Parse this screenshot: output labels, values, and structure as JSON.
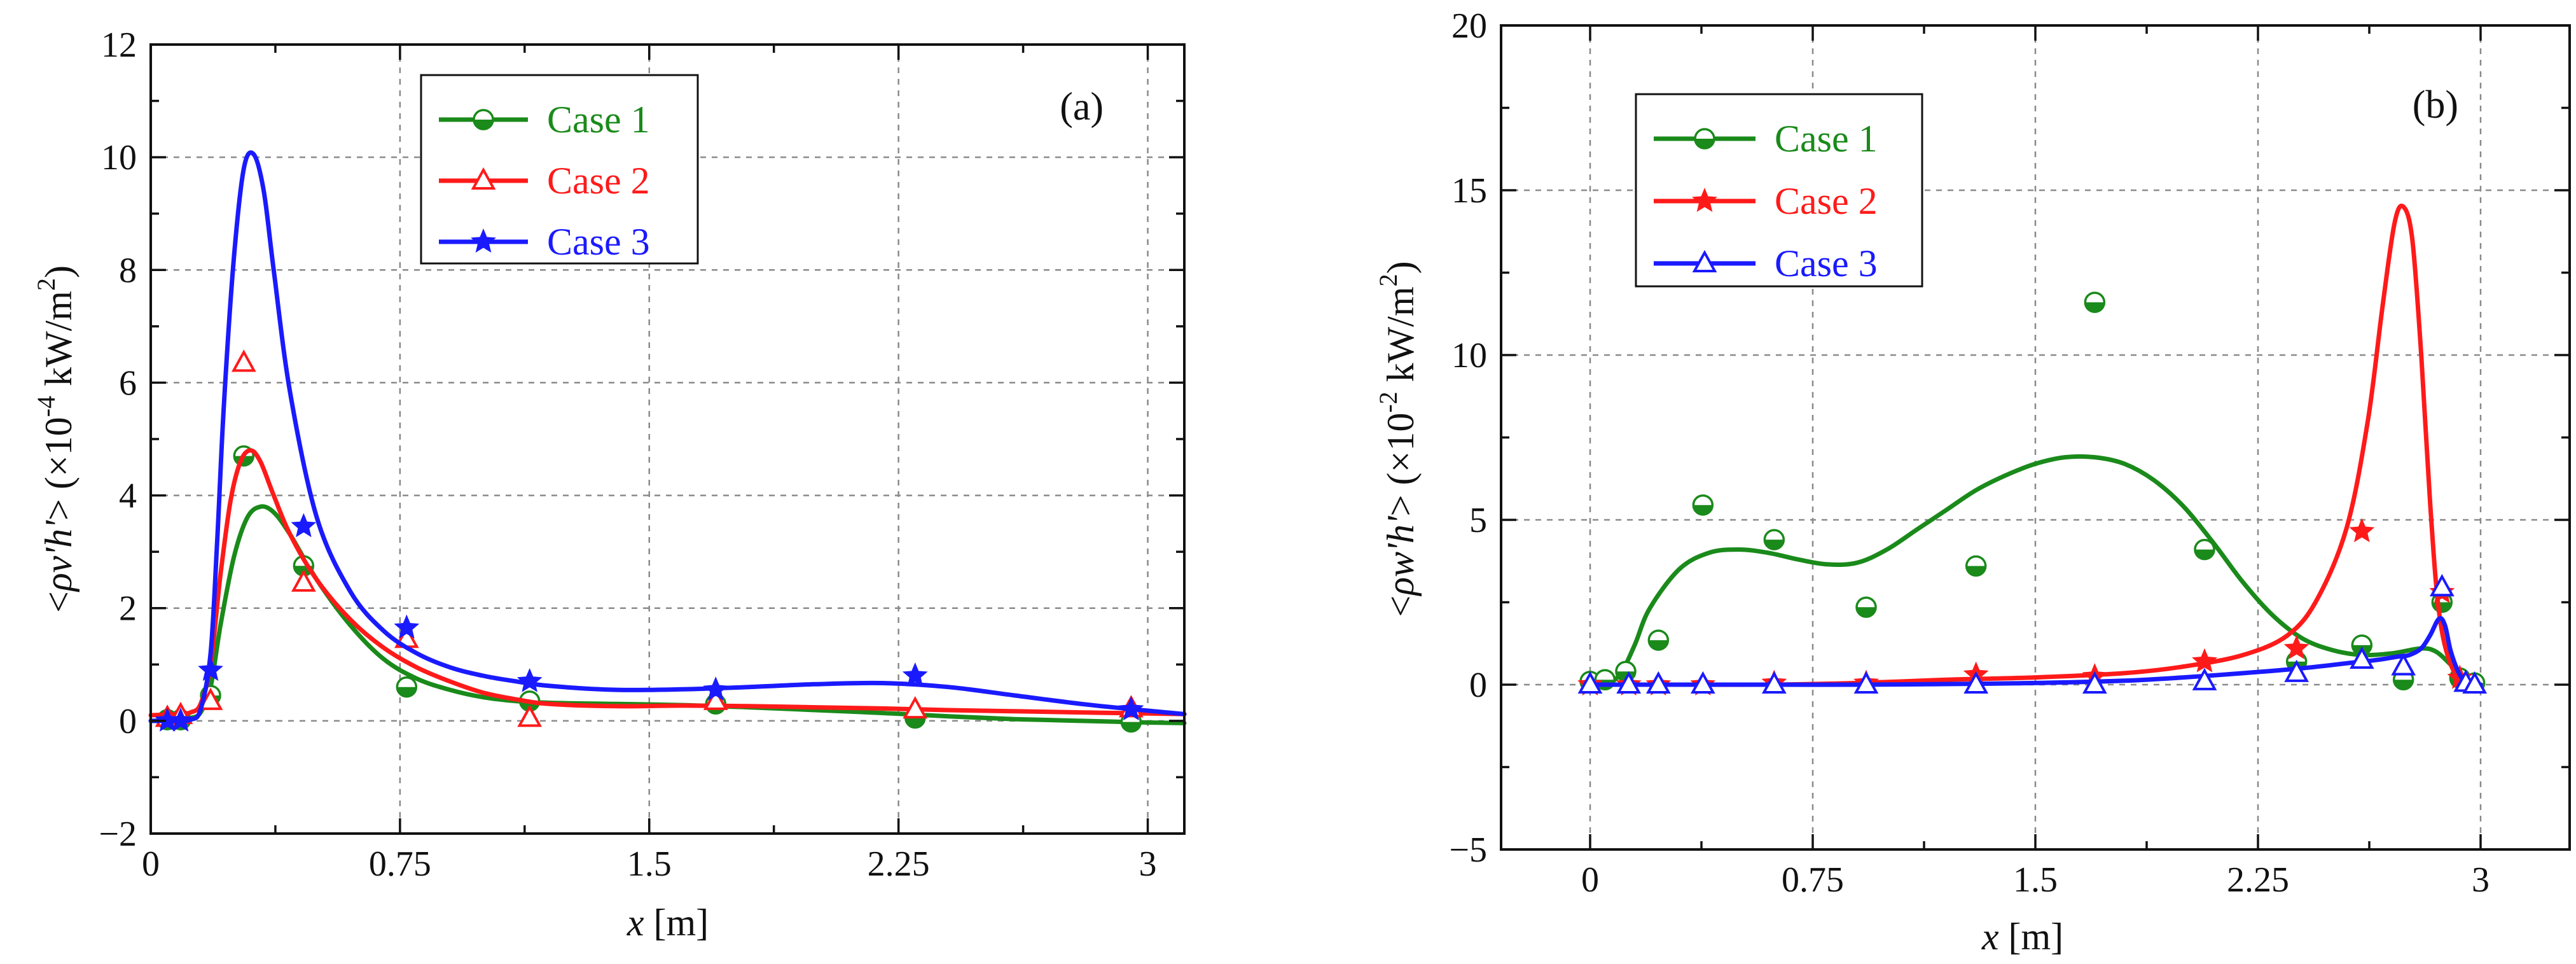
{
  "colors": {
    "case1": "#1a8a1a",
    "case2": "#ff1a1a",
    "case3": "#1a1aff",
    "axis": "#111111",
    "grid": "#8a8a8a"
  },
  "chart_data": [
    {
      "type": "line",
      "panel_label": "(a)",
      "xlabel_var": "x",
      "xlabel_unit": " [m]",
      "ylabel": {
        "p1": "<",
        "p2": "ρv'h'",
        "p3": "> (×10",
        "exp": "-4",
        "p4": " kW/m",
        "exp2": "2",
        "p5": ")"
      },
      "xlim": [
        0,
        3.11
      ],
      "ylim": [
        -2,
        12
      ],
      "xticks": [
        0,
        0.75,
        1.5,
        2.25,
        3
      ],
      "xtick_labels": [
        "0",
        "0.75",
        "1.5",
        "2.25",
        "3"
      ],
      "xticks_minor": [
        0.375,
        1.125,
        1.875,
        2.625
      ],
      "yticks": [
        -2,
        0,
        2,
        4,
        6,
        8,
        10,
        12
      ],
      "ytick_labels": [
        "−2",
        "0",
        "2",
        "4",
        "6",
        "8",
        "10",
        "12"
      ],
      "legend_position": "top-center",
      "series": [
        {
          "name": "Case 1",
          "color": "#1a8a1a",
          "marker": "circle",
          "curve_x": [
            0,
            0.08,
            0.12,
            0.15,
            0.18,
            0.21,
            0.25,
            0.29,
            0.33,
            0.37,
            0.42,
            0.5,
            0.6,
            0.7,
            0.8,
            0.9,
            1.0,
            1.1,
            1.2,
            1.4,
            1.6,
            1.8,
            2.0,
            2.2,
            2.4,
            2.6,
            2.8,
            3.0,
            3.11
          ],
          "curve_y": [
            0,
            0.02,
            0.05,
            0.15,
            0.6,
            1.7,
            2.9,
            3.6,
            3.8,
            3.7,
            3.3,
            2.5,
            1.7,
            1.1,
            0.75,
            0.55,
            0.42,
            0.35,
            0.32,
            0.3,
            0.28,
            0.24,
            0.19,
            0.14,
            0.08,
            0.03,
            0.0,
            -0.03,
            -0.04
          ],
          "marker_x": [
            0.05,
            0.09,
            0.18,
            0.28,
            0.46,
            0.77,
            1.14,
            1.7,
            2.3,
            2.95
          ],
          "marker_y": [
            0.02,
            0.02,
            0.45,
            4.7,
            2.75,
            0.6,
            0.35,
            0.3,
            0.05,
            -0.02
          ]
        },
        {
          "name": "Case 2",
          "color": "#ff1a1a",
          "marker": "triangle",
          "curve_x": [
            0,
            0.08,
            0.12,
            0.15,
            0.18,
            0.21,
            0.24,
            0.27,
            0.3,
            0.33,
            0.37,
            0.42,
            0.5,
            0.6,
            0.7,
            0.8,
            0.9,
            1.0,
            1.1,
            1.2,
            1.4,
            1.6,
            1.8,
            2.0,
            2.2,
            2.4,
            2.6,
            2.8,
            3.0,
            3.11
          ],
          "curve_y": [
            0.1,
            0.12,
            0.15,
            0.3,
            1.0,
            2.6,
            3.9,
            4.6,
            4.8,
            4.6,
            4.0,
            3.3,
            2.5,
            1.8,
            1.3,
            0.95,
            0.7,
            0.5,
            0.38,
            0.3,
            0.26,
            0.27,
            0.26,
            0.24,
            0.22,
            0.19,
            0.17,
            0.15,
            0.13,
            0.12
          ],
          "marker_x": [
            0.05,
            0.09,
            0.18,
            0.28,
            0.46,
            0.77,
            1.14,
            1.7,
            2.3,
            2.95
          ],
          "marker_y": [
            0.05,
            0.1,
            0.35,
            6.35,
            2.45,
            1.45,
            0.05,
            0.35,
            0.2,
            0.22
          ]
        },
        {
          "name": "Case 3",
          "color": "#1a1aff",
          "marker": "star",
          "curve_x": [
            0,
            0.08,
            0.12,
            0.15,
            0.18,
            0.2,
            0.22,
            0.25,
            0.28,
            0.31,
            0.34,
            0.37,
            0.42,
            0.5,
            0.6,
            0.7,
            0.8,
            0.9,
            1.0,
            1.1,
            1.2,
            1.4,
            1.6,
            1.8,
            2.0,
            2.2,
            2.4,
            2.6,
            2.8,
            3.0,
            3.11
          ],
          "curve_y": [
            0,
            0,
            0.02,
            0.2,
            1.2,
            3.2,
            5.6,
            8.2,
            9.8,
            10.05,
            9.4,
            8.0,
            5.8,
            3.6,
            2.3,
            1.6,
            1.2,
            0.95,
            0.8,
            0.7,
            0.62,
            0.55,
            0.56,
            0.6,
            0.65,
            0.67,
            0.6,
            0.45,
            0.3,
            0.18,
            0.12
          ],
          "marker_x": [
            0.05,
            0.09,
            0.18,
            0.46,
            0.77,
            1.14,
            1.7,
            2.3,
            2.95
          ],
          "marker_y": [
            0,
            0,
            0.9,
            3.45,
            1.65,
            0.7,
            0.55,
            0.8,
            0.2
          ]
        }
      ]
    },
    {
      "type": "line",
      "panel_label": "(b)",
      "xlabel_var": "x",
      "xlabel_unit": " [m]",
      "ylabel": {
        "p1": "<",
        "p2": "ρw'h'",
        "p3": "> (×10",
        "exp": "-2",
        "p4": " kW/m",
        "exp2": "2",
        "p5": ")"
      },
      "xlim": [
        -0.3,
        3.3
      ],
      "ylim": [
        -5,
        20
      ],
      "xticks": [
        0,
        0.75,
        1.5,
        2.25,
        3
      ],
      "xtick_labels": [
        "0",
        "0.75",
        "1.5",
        "2.25",
        "3"
      ],
      "xticks_minor": [
        0.375,
        1.125,
        1.875,
        2.625
      ],
      "yticks": [
        -5,
        0,
        5,
        10,
        15,
        20
      ],
      "ytick_labels": [
        "−5",
        "0",
        "5",
        "10",
        "15",
        "20"
      ],
      "legend_position": "top-left",
      "series": [
        {
          "name": "Case 1",
          "color": "#1a8a1a",
          "marker": "circle",
          "curve_x": [
            0,
            0.05,
            0.1,
            0.15,
            0.2,
            0.3,
            0.4,
            0.5,
            0.6,
            0.7,
            0.8,
            0.9,
            1.0,
            1.1,
            1.2,
            1.3,
            1.4,
            1.5,
            1.6,
            1.7,
            1.8,
            1.9,
            2.0,
            2.1,
            2.2,
            2.3,
            2.4,
            2.5,
            2.6,
            2.7,
            2.8,
            2.85,
            2.9,
            2.95,
            3.0
          ],
          "curve_y": [
            0,
            0.02,
            0.3,
            1.2,
            2.3,
            3.5,
            4.0,
            4.1,
            4.0,
            3.8,
            3.65,
            3.7,
            4.1,
            4.7,
            5.3,
            5.9,
            6.35,
            6.7,
            6.9,
            6.9,
            6.7,
            6.2,
            5.4,
            4.3,
            3.1,
            2.1,
            1.4,
            1.05,
            0.9,
            0.95,
            1.1,
            1.0,
            0.6,
            0.15,
            0.0
          ],
          "marker_x": [
            0.0,
            0.05,
            0.12,
            0.23,
            0.38,
            0.62,
            0.93,
            1.3,
            1.7,
            2.07,
            2.38,
            2.6,
            2.74,
            2.87,
            2.93,
            2.98
          ],
          "marker_y": [
            0.1,
            0.15,
            0.4,
            1.35,
            5.45,
            4.4,
            2.35,
            3.6,
            11.6,
            4.1,
            0.7,
            1.2,
            0.15,
            2.5,
            0.2,
            0.05
          ]
        },
        {
          "name": "Case 2",
          "color": "#ff1a1a",
          "marker": "star",
          "curve_x": [
            0,
            0.3,
            0.6,
            0.9,
            1.2,
            1.5,
            1.8,
            2.0,
            2.2,
            2.35,
            2.45,
            2.55,
            2.62,
            2.67,
            2.71,
            2.74,
            2.77,
            2.8,
            2.83,
            2.86,
            2.9,
            2.95,
            3.0
          ],
          "curve_y": [
            0,
            0,
            0,
            0.05,
            0.15,
            0.22,
            0.35,
            0.55,
            0.9,
            1.5,
            2.6,
            4.8,
            8.0,
            11.5,
            14.0,
            14.5,
            13.5,
            10.0,
            5.5,
            2.2,
            0.6,
            0.1,
            0
          ],
          "marker_x": [
            0.0,
            0.13,
            0.23,
            0.38,
            0.62,
            0.93,
            1.3,
            1.7,
            2.07,
            2.38,
            2.6,
            2.87,
            2.93
          ],
          "marker_y": [
            0,
            0,
            0,
            0,
            0.05,
            0.05,
            0.3,
            0.25,
            0.7,
            1.1,
            4.65,
            2.8,
            0.2
          ]
        },
        {
          "name": "Case 3",
          "color": "#1a1aff",
          "marker": "triangle",
          "curve_x": [
            0,
            0.3,
            0.6,
            0.9,
            1.2,
            1.5,
            1.8,
            2.0,
            2.2,
            2.4,
            2.55,
            2.65,
            2.72,
            2.76,
            2.8,
            2.83,
            2.86,
            2.88,
            2.9,
            2.93,
            2.96,
            3.0
          ],
          "curve_y": [
            0,
            0,
            0,
            0,
            0.02,
            0.05,
            0.12,
            0.22,
            0.35,
            0.5,
            0.65,
            0.75,
            0.85,
            0.9,
            1.1,
            1.5,
            2.0,
            1.8,
            1.0,
            0.3,
            0.05,
            0
          ],
          "marker_x": [
            0.0,
            0.13,
            0.23,
            0.38,
            0.62,
            0.93,
            1.3,
            1.7,
            2.07,
            2.38,
            2.6,
            2.74,
            2.87,
            2.95,
            2.98
          ],
          "marker_y": [
            0,
            0,
            0,
            0,
            0,
            0,
            0,
            0,
            0.1,
            0.35,
            0.75,
            0.55,
            2.95,
            0.05,
            0
          ]
        }
      ]
    }
  ]
}
